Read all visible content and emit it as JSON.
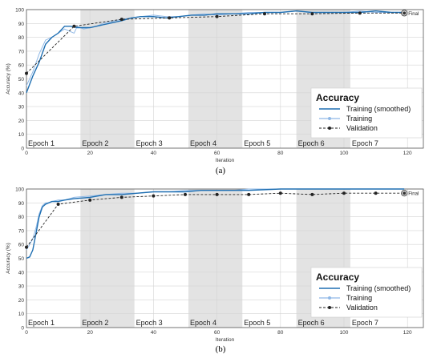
{
  "legend": {
    "title": "Accuracy",
    "entries": [
      "Training (smoothed)",
      "Training",
      "Validation"
    ]
  },
  "final_label": "Final",
  "colors": {
    "smoothed": "#1f6fb2",
    "training": "#8fb8e6",
    "validation": "#222222",
    "epoch_band": "#e3e3e3",
    "grid": "#d4d4d4"
  },
  "chart_data": [
    {
      "type": "line",
      "caption": "(a)",
      "xlabel": "Iteration",
      "ylabel": "Accuracy (%)",
      "xlim": [
        0,
        125
      ],
      "ylim": [
        0,
        100
      ],
      "xticks": [
        0,
        20,
        40,
        60,
        80,
        100,
        120
      ],
      "yticks": [
        0,
        10,
        20,
        30,
        40,
        50,
        60,
        70,
        80,
        90,
        100
      ],
      "grid": true,
      "legend_position": "bottom-right",
      "epochs": [
        {
          "label": "Epoch 1",
          "start": 0,
          "end": 17
        },
        {
          "label": "Epoch 2",
          "start": 17,
          "end": 34
        },
        {
          "label": "Epoch 3",
          "start": 34,
          "end": 51
        },
        {
          "label": "Epoch 4",
          "start": 51,
          "end": 68
        },
        {
          "label": "Epoch 5",
          "start": 68,
          "end": 85
        },
        {
          "label": "Epoch 6",
          "start": 85,
          "end": 102
        },
        {
          "label": "Epoch 7",
          "start": 102,
          "end": 119
        }
      ],
      "series": [
        {
          "name": "Training (smoothed)",
          "x": [
            0,
            2,
            4,
            6,
            8,
            10,
            12,
            14,
            16,
            18,
            20,
            22,
            24,
            26,
            28,
            30,
            33,
            36,
            40,
            44,
            48,
            52,
            56,
            60,
            65,
            70,
            75,
            80,
            85,
            90,
            95,
            100,
            105,
            110,
            115,
            119
          ],
          "y": [
            40,
            52,
            62,
            75,
            80,
            83,
            88,
            88,
            87,
            87,
            87,
            88,
            89,
            90,
            91,
            92,
            94,
            95,
            95,
            94,
            95,
            96,
            96,
            97,
            97,
            97,
            98,
            98,
            99,
            98,
            98,
            98,
            98,
            99,
            98,
            98
          ]
        },
        {
          "name": "Training",
          "x": [
            0,
            2,
            4,
            6,
            8,
            10,
            12,
            14,
            15,
            16,
            18,
            20,
            22,
            24,
            26,
            28,
            30,
            33,
            36,
            40,
            44,
            48,
            52,
            56,
            60,
            65,
            70,
            75,
            80,
            85,
            90,
            95,
            100,
            105,
            110,
            115,
            119
          ],
          "y": [
            45,
            55,
            68,
            78,
            80,
            83,
            86,
            84,
            83,
            88,
            86,
            87,
            88,
            90,
            91,
            92,
            93,
            94,
            95,
            96,
            95,
            95,
            96,
            97,
            96,
            97,
            98,
            98,
            98,
            99,
            98,
            98,
            98,
            99,
            98,
            98,
            98
          ]
        },
        {
          "name": "Validation",
          "x": [
            0,
            15,
            30,
            45,
            60,
            75,
            90,
            105,
            119
          ],
          "y": [
            54,
            88,
            93,
            94,
            95,
            97,
            97,
            97.5,
            97.5
          ]
        }
      ]
    },
    {
      "type": "line",
      "caption": "(b)",
      "xlabel": "Iteration",
      "ylabel": "Accuracy (%)",
      "xlim": [
        0,
        125
      ],
      "ylim": [
        0,
        100
      ],
      "xticks": [
        0,
        20,
        40,
        60,
        80,
        100,
        120
      ],
      "yticks": [
        0,
        10,
        20,
        30,
        40,
        50,
        60,
        70,
        80,
        90,
        100
      ],
      "grid": true,
      "legend_position": "bottom-right",
      "epochs": [
        {
          "label": "Epoch 1",
          "start": 0,
          "end": 17
        },
        {
          "label": "Epoch 2",
          "start": 17,
          "end": 34
        },
        {
          "label": "Epoch 3",
          "start": 34,
          "end": 51
        },
        {
          "label": "Epoch 4",
          "start": 51,
          "end": 68
        },
        {
          "label": "Epoch 5",
          "start": 68,
          "end": 85
        },
        {
          "label": "Epoch 6",
          "start": 85,
          "end": 102
        },
        {
          "label": "Epoch 7",
          "start": 102,
          "end": 119
        }
      ],
      "series": [
        {
          "name": "Training (smoothed)",
          "x": [
            0,
            1,
            2,
            3,
            4,
            5,
            6,
            7,
            8,
            10,
            12,
            15,
            20,
            25,
            30,
            35,
            40,
            45,
            50,
            55,
            60,
            65,
            70,
            80,
            90,
            100,
            110,
            119
          ],
          "y": [
            50,
            51,
            56,
            68,
            80,
            87,
            89,
            90,
            91,
            91,
            92,
            93,
            94,
            96,
            96,
            97,
            98,
            98,
            98,
            99,
            99,
            99,
            99,
            100,
            100,
            100,
            100,
            100
          ]
        },
        {
          "name": "Training",
          "x": [
            0,
            1,
            2,
            3,
            4,
            5,
            6,
            7,
            8,
            10,
            12,
            15,
            20,
            25,
            30,
            35,
            40,
            45,
            50,
            55,
            60,
            65,
            70,
            80,
            90,
            100,
            110,
            119
          ],
          "y": [
            56,
            60,
            64,
            72,
            82,
            88,
            90,
            90,
            91,
            92,
            92,
            94,
            95,
            96,
            97,
            97,
            98,
            98,
            99,
            99,
            99,
            99,
            100,
            100,
            100,
            100,
            100,
            100
          ]
        },
        {
          "name": "Validation",
          "x": [
            0,
            10,
            20,
            30,
            40,
            50,
            60,
            70,
            80,
            90,
            100,
            110,
            119
          ],
          "y": [
            58,
            89,
            92,
            94,
            95,
            96,
            96,
            96,
            97,
            96,
            97,
            97,
            97
          ]
        }
      ]
    }
  ],
  "captions": [
    "(a)",
    "(b)"
  ]
}
